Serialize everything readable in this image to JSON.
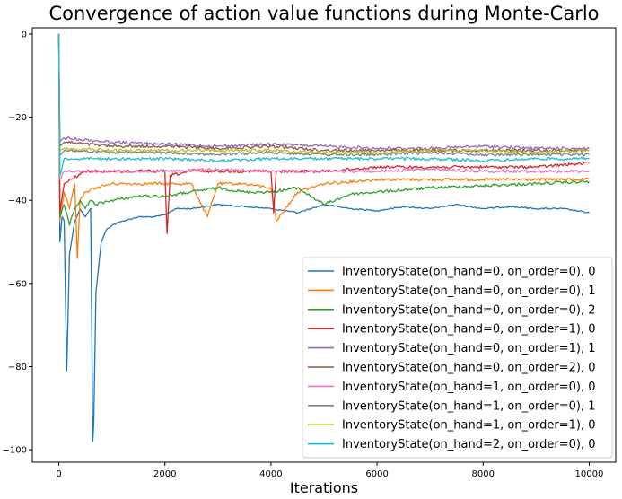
{
  "chart_data": {
    "type": "line",
    "title": "Convergence of action value functions during Monte-Carlo",
    "xlabel": "Iterations",
    "ylabel": "",
    "xlim": [
      -500,
      10500
    ],
    "ylim": [
      -103,
      1.5
    ],
    "x_ticks": [
      0,
      2000,
      4000,
      6000,
      8000,
      10000
    ],
    "y_ticks": [
      0,
      -20,
      -40,
      -60,
      -80,
      -100
    ],
    "grid": false,
    "legend_position": "lower-right",
    "series": [
      {
        "name": "InventoryState(on_hand=0, on_order=0), 0",
        "color": "#1f77b4",
        "x": [
          0,
          20,
          60,
          100,
          150,
          200,
          300,
          400,
          500,
          600,
          640,
          660,
          700,
          800,
          900,
          1000,
          1200,
          1500,
          1800,
          2000,
          2200,
          2500,
          3000,
          3500,
          4000,
          4500,
          5000,
          5500,
          6000,
          6500,
          7000,
          7500,
          8000,
          8500,
          9000,
          9500,
          10000
        ],
        "y": [
          0,
          -50,
          -44,
          -45,
          -81,
          -53,
          -45,
          -42,
          -44,
          -42,
          -98,
          -93,
          -62,
          -50,
          -47,
          -46,
          -45,
          -44,
          -44,
          -43.5,
          -42,
          -42,
          -41,
          -41.5,
          -42,
          -43,
          -41,
          -42,
          -42.5,
          -41.5,
          -42,
          -41,
          -42,
          -41.5,
          -42,
          -42,
          -43
        ]
      },
      {
        "name": "InventoryState(on_hand=0, on_order=0), 1",
        "color": "#ff7f0e",
        "x": [
          0,
          20,
          100,
          200,
          300,
          350,
          400,
          500,
          700,
          1000,
          1500,
          2000,
          2500,
          2800,
          3000,
          3500,
          4000,
          4100,
          4500,
          5000,
          6000,
          7000,
          8000,
          9000,
          10000
        ],
        "y": [
          0,
          -45,
          -38,
          -42,
          -36,
          -54,
          -40,
          -38,
          -37,
          -36,
          -36,
          -36,
          -36,
          -44,
          -36,
          -36,
          -37,
          -45,
          -38,
          -36,
          -35,
          -35,
          -35,
          -35,
          -35
        ]
      },
      {
        "name": "InventoryState(on_hand=0, on_order=0), 2",
        "color": "#2ca02c",
        "x": [
          0,
          20,
          100,
          200,
          300,
          400,
          500,
          600,
          700,
          1000,
          1500,
          2000,
          2500,
          3000,
          3500,
          4000,
          4500,
          5000,
          5500,
          6000,
          7000,
          8000,
          9000,
          10000
        ],
        "y": [
          0,
          -44,
          -41,
          -46,
          -42,
          -40,
          -42,
          -40,
          -41,
          -40,
          -39,
          -39,
          -38,
          -37,
          -38,
          -38,
          -37,
          -41,
          -38.5,
          -38,
          -37,
          -36.5,
          -36,
          -35.5
        ]
      },
      {
        "name": "InventoryState(on_hand=0, on_order=1), 0",
        "color": "#d62728",
        "x": [
          0,
          20,
          100,
          500,
          1000,
          1500,
          2000,
          2040,
          2100,
          2500,
          2800,
          3000,
          3500,
          4000,
          4050,
          4100,
          4500,
          5000,
          6000,
          7000,
          8000,
          9000,
          10000
        ],
        "y": [
          0,
          -43,
          -36,
          -33,
          -33,
          -33,
          -33,
          -48,
          -34,
          -33,
          -33,
          -33,
          -33,
          -33,
          -43,
          -33,
          -33,
          -33,
          -32,
          -32,
          -32,
          -32,
          -31
        ]
      },
      {
        "name": "InventoryState(on_hand=0, on_order=1), 1",
        "color": "#9467bd",
        "x": [
          0,
          20,
          100,
          1000,
          2000,
          3000,
          4000,
          5000,
          6000,
          7000,
          8000,
          9000,
          10000
        ],
        "y": [
          0,
          -26,
          -25,
          -26,
          -26.5,
          -27,
          -26.5,
          -27,
          -27.5,
          -27.5,
          -27,
          -27.5,
          -27.5
        ]
      },
      {
        "name": "InventoryState(on_hand=0, on_order=2), 0",
        "color": "#8c564b",
        "x": [
          0,
          20,
          100,
          1000,
          2000,
          3000,
          4000,
          5000,
          6000,
          7000,
          8000,
          9000,
          10000
        ],
        "y": [
          0,
          -27,
          -26,
          -27,
          -27,
          -27.5,
          -27,
          -28,
          -28,
          -28,
          -28,
          -28,
          -28
        ]
      },
      {
        "name": "InventoryState(on_hand=1, on_order=0), 0",
        "color": "#e377c2",
        "x": [
          0,
          20,
          100,
          1000,
          2000,
          3000,
          4000,
          5000,
          6000,
          7000,
          8000,
          9000,
          10000
        ],
        "y": [
          0,
          -35,
          -33,
          -33,
          -33,
          -32.5,
          -33,
          -33,
          -33,
          -32.5,
          -33,
          -33,
          -33
        ]
      },
      {
        "name": "InventoryState(on_hand=1, on_order=0), 1",
        "color": "#7f7f7f",
        "x": [
          0,
          20,
          100,
          1000,
          2000,
          3000,
          4000,
          5000,
          6000,
          7000,
          8000,
          9000,
          10000
        ],
        "y": [
          0,
          -29,
          -28,
          -28.5,
          -28.5,
          -29,
          -28.5,
          -29,
          -29,
          -28.5,
          -29,
          -29,
          -29
        ]
      },
      {
        "name": "InventoryState(on_hand=1, on_order=1), 0",
        "color": "#bcbd22",
        "x": [
          0,
          20,
          100,
          1000,
          2000,
          3000,
          4000,
          5000,
          6000,
          7000,
          8000,
          9000,
          10000
        ],
        "y": [
          0,
          -28,
          -27.5,
          -28,
          -28,
          -28,
          -28,
          -28.5,
          -28.5,
          -28,
          -28,
          -28.5,
          -28
        ]
      },
      {
        "name": "InventoryState(on_hand=2, on_order=0), 0",
        "color": "#17becf",
        "x": [
          0,
          20,
          100,
          500,
          1000,
          2000,
          3000,
          4000,
          5000,
          6000,
          7000,
          8000,
          9000,
          10000
        ],
        "y": [
          0,
          -34,
          -30,
          -30,
          -30,
          -30,
          -30.5,
          -30,
          -30,
          -30,
          -30,
          -30.5,
          -30,
          -30
        ]
      }
    ]
  }
}
